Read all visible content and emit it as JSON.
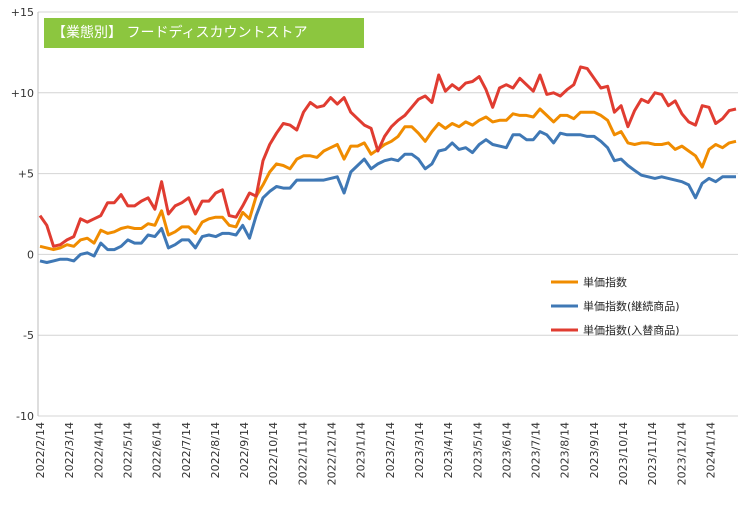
{
  "title": "【業態別】 フードディスカウントストア",
  "chart_data": {
    "type": "line",
    "ylim": [
      -10,
      15
    ],
    "yticks": [
      "+15",
      "+10",
      "+5",
      "0",
      "-5",
      "-10"
    ],
    "ytick_values": [
      15,
      10,
      5,
      0,
      -5,
      -10
    ],
    "x_tick_labels": [
      "2022/2/14",
      "2022/3/14",
      "2022/4/14",
      "2022/5/14",
      "2022/6/14",
      "2022/7/14",
      "2022/8/14",
      "2022/9/14",
      "2022/10/14",
      "2022/11/14",
      "2022/12/14",
      "2023/1/14",
      "2023/2/14",
      "2023/3/14",
      "2023/4/14",
      "2023/5/14",
      "2023/6/14",
      "2023/7/14",
      "2023/8/14",
      "2023/9/14",
      "2023/10/14",
      "2023/11/14",
      "2023/12/14",
      "2024/1/14"
    ],
    "grid": "horizontal",
    "legend_position": "right-center",
    "series": [
      {
        "name": "単価指数",
        "color": "#f08c00",
        "values": [
          0.5,
          0.4,
          0.3,
          0.4,
          0.6,
          0.5,
          0.9,
          1.0,
          0.7,
          1.5,
          1.3,
          1.4,
          1.6,
          1.7,
          1.6,
          1.6,
          1.9,
          1.8,
          2.7,
          1.2,
          1.4,
          1.7,
          1.7,
          1.3,
          2.0,
          2.2,
          2.3,
          2.3,
          1.8,
          1.7,
          2.6,
          2.2,
          3.6,
          4.3,
          5.1,
          5.6,
          5.5,
          5.3,
          5.9,
          6.1,
          6.1,
          6.0,
          6.4,
          6.6,
          6.8,
          5.9,
          6.7,
          6.7,
          6.9,
          6.2,
          6.5,
          6.8,
          7.0,
          7.3,
          7.9,
          7.9,
          7.5,
          7.0,
          7.6,
          8.1,
          7.8,
          8.1,
          7.9,
          8.2,
          8.0,
          8.3,
          8.5,
          8.2,
          8.3,
          8.3,
          8.7,
          8.6,
          8.6,
          8.5,
          9.0,
          8.6,
          8.2,
          8.6,
          8.6,
          8.4,
          8.8,
          8.8,
          8.8,
          8.6,
          8.3,
          7.4,
          7.6,
          6.9,
          6.8,
          6.9,
          6.9,
          6.8,
          6.8,
          6.9,
          6.5,
          6.7,
          6.4,
          6.1,
          5.4,
          6.5,
          6.8,
          6.6,
          6.9,
          7.0
        ]
      },
      {
        "name": "単価指数(継続商品)",
        "color": "#3f78b5",
        "values": [
          -0.4,
          -0.5,
          -0.4,
          -0.3,
          -0.3,
          -0.4,
          0.0,
          0.1,
          -0.1,
          0.7,
          0.3,
          0.3,
          0.5,
          0.9,
          0.7,
          0.7,
          1.2,
          1.1,
          1.6,
          0.4,
          0.6,
          0.9,
          0.9,
          0.4,
          1.1,
          1.2,
          1.1,
          1.3,
          1.3,
          1.2,
          1.8,
          1.0,
          2.4,
          3.5,
          3.9,
          4.2,
          4.1,
          4.1,
          4.6,
          4.6,
          4.6,
          4.6,
          4.6,
          4.7,
          4.8,
          3.8,
          5.1,
          5.5,
          5.9,
          5.3,
          5.6,
          5.8,
          5.9,
          5.8,
          6.2,
          6.2,
          5.9,
          5.3,
          5.6,
          6.4,
          6.5,
          6.9,
          6.5,
          6.6,
          6.3,
          6.8,
          7.1,
          6.8,
          6.7,
          6.6,
          7.4,
          7.4,
          7.1,
          7.1,
          7.6,
          7.4,
          6.9,
          7.5,
          7.4,
          7.4,
          7.4,
          7.3,
          7.3,
          7.0,
          6.6,
          5.8,
          5.9,
          5.5,
          5.2,
          4.9,
          4.8,
          4.7,
          4.8,
          4.7,
          4.6,
          4.5,
          4.3,
          3.5,
          4.4,
          4.7,
          4.5,
          4.8,
          4.8,
          4.8
        ]
      },
      {
        "name": "単価指数(入替商品)",
        "color": "#e03c31",
        "values": [
          2.4,
          1.8,
          0.5,
          0.6,
          0.9,
          1.1,
          2.2,
          2.0,
          2.2,
          2.4,
          3.2,
          3.2,
          3.7,
          3.0,
          3.0,
          3.3,
          3.5,
          2.8,
          4.5,
          2.5,
          3.0,
          3.2,
          3.5,
          2.5,
          3.3,
          3.3,
          3.8,
          4.0,
          2.4,
          2.3,
          3.0,
          3.8,
          3.6,
          5.8,
          6.8,
          7.5,
          8.1,
          8.0,
          7.7,
          8.8,
          9.4,
          9.1,
          9.2,
          9.7,
          9.3,
          9.7,
          8.8,
          8.4,
          8.0,
          7.8,
          6.4,
          7.3,
          7.9,
          8.3,
          8.6,
          9.1,
          9.6,
          9.8,
          9.4,
          11.1,
          10.1,
          10.5,
          10.2,
          10.6,
          10.7,
          11.0,
          10.2,
          9.1,
          10.3,
          10.5,
          10.3,
          10.9,
          10.5,
          10.1,
          11.1,
          9.9,
          10.0,
          9.8,
          10.2,
          10.5,
          11.6,
          11.5,
          10.9,
          10.3,
          10.4,
          8.8,
          9.2,
          7.9,
          8.9,
          9.6,
          9.4,
          10.0,
          9.9,
          9.2,
          9.5,
          8.7,
          8.2,
          8.0,
          9.2,
          9.1,
          8.1,
          8.4,
          8.9,
          9.0
        ]
      }
    ]
  }
}
